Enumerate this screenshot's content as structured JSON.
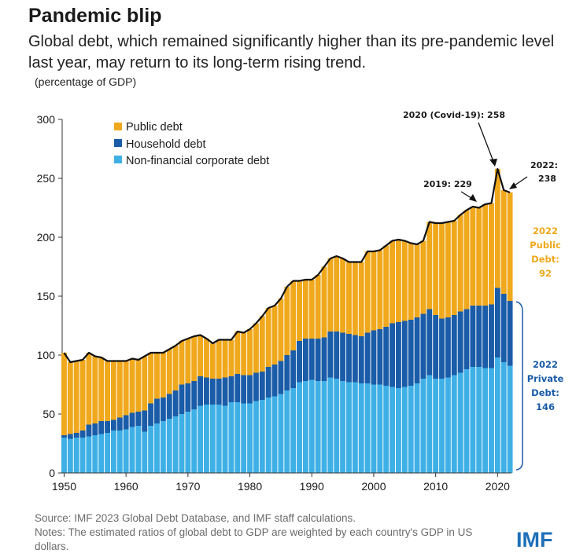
{
  "header": {
    "title": "Pandemic blip",
    "subtitle": "Global debt, which remained significantly higher than its pre-pandemic level last year, may return to its long-term rising trend.",
    "unit": "(percentage of GDP)"
  },
  "footer": {
    "source": "Source: IMF 2023 Global Debt Database, and IMF staff calculations.",
    "notes": "Notes: The estimated ratios of global debt to GDP are weighted by each country's GDP in US dollars.",
    "logo": "IMF"
  },
  "colors": {
    "public": "#f0a81c",
    "household": "#1a5ca8",
    "corporate": "#3fb0e6",
    "total_line": "#111111"
  },
  "chart_data": {
    "type": "bar",
    "stacked": true,
    "title": "Pandemic blip",
    "ylabel": "percentage of GDP",
    "xlabel": "",
    "ylim": [
      0,
      300
    ],
    "yticks": [
      0,
      50,
      100,
      150,
      200,
      250,
      300
    ],
    "xticks": [
      1950,
      1960,
      1970,
      1980,
      1990,
      2000,
      2010,
      2020
    ],
    "x": [
      1950,
      1951,
      1952,
      1953,
      1954,
      1955,
      1956,
      1957,
      1958,
      1959,
      1960,
      1961,
      1962,
      1963,
      1964,
      1965,
      1966,
      1967,
      1968,
      1969,
      1970,
      1971,
      1972,
      1973,
      1974,
      1975,
      1976,
      1977,
      1978,
      1979,
      1980,
      1981,
      1982,
      1983,
      1984,
      1985,
      1986,
      1987,
      1988,
      1989,
      1990,
      1991,
      1992,
      1993,
      1994,
      1995,
      1996,
      1997,
      1998,
      1999,
      2000,
      2001,
      2002,
      2003,
      2004,
      2005,
      2006,
      2007,
      2008,
      2009,
      2010,
      2011,
      2012,
      2013,
      2014,
      2015,
      2016,
      2017,
      2018,
      2019,
      2020,
      2021,
      2022
    ],
    "series": [
      {
        "name": "Non-financial corporate debt",
        "values": [
          30,
          29,
          30,
          30,
          31,
          32,
          33,
          34,
          36,
          36,
          37,
          39,
          40,
          35,
          40,
          42,
          44,
          46,
          48,
          50,
          52,
          54,
          57,
          58,
          58,
          58,
          57,
          60,
          60,
          59,
          59,
          61,
          62,
          64,
          65,
          67,
          70,
          72,
          77,
          78,
          79,
          78,
          78,
          81,
          80,
          78,
          77,
          77,
          76,
          76,
          75,
          75,
          74,
          73,
          72,
          73,
          74,
          76,
          80,
          83,
          80,
          80,
          81,
          83,
          85,
          88,
          90,
          90,
          89,
          89,
          98,
          94,
          91
        ]
      },
      {
        "name": "Household debt",
        "values": [
          2,
          4,
          4,
          6,
          10,
          10,
          11,
          10,
          9,
          11,
          12,
          12,
          12,
          18,
          19,
          21,
          20,
          21,
          22,
          25,
          24,
          24,
          25,
          23,
          22,
          22,
          24,
          22,
          24,
          24,
          24,
          24,
          24,
          26,
          27,
          28,
          30,
          32,
          35,
          36,
          35,
          36,
          37,
          39,
          40,
          41,
          41,
          40,
          40,
          43,
          46,
          47,
          50,
          54,
          56,
          56,
          56,
          56,
          55,
          56,
          54,
          51,
          51,
          51,
          52,
          51,
          52,
          52,
          53,
          54,
          59,
          58,
          55
        ]
      },
      {
        "name": "Public debt",
        "values": [
          70,
          61,
          61,
          60,
          61,
          57,
          54,
          51,
          50,
          48,
          46,
          46,
          44,
          46,
          43,
          39,
          38,
          38,
          38,
          37,
          38,
          38,
          35,
          33,
          30,
          33,
          32,
          31,
          36,
          36,
          39,
          42,
          47,
          50,
          50,
          53,
          58,
          59,
          51,
          50,
          50,
          54,
          60,
          62,
          64,
          63,
          61,
          62,
          63,
          69,
          67,
          67,
          69,
          70,
          70,
          68,
          65,
          62,
          62,
          74,
          78,
          81,
          81,
          80,
          82,
          84,
          84,
          83,
          86,
          86,
          101,
          88,
          92
        ]
      }
    ],
    "totals": [
      102,
      94,
      95,
      96,
      102,
      99,
      98,
      95,
      95,
      95,
      95,
      97,
      96,
      99,
      102,
      102,
      102,
      105,
      108,
      112,
      114,
      116,
      117,
      114,
      110,
      113,
      113,
      113,
      120,
      119,
      122,
      127,
      133,
      140,
      142,
      148,
      158,
      163,
      163,
      164,
      164,
      168,
      175,
      182,
      184,
      182,
      179,
      179,
      179,
      188,
      188,
      189,
      193,
      197,
      198,
      197,
      195,
      194,
      197,
      213,
      212,
      212,
      213,
      214,
      219,
      223,
      226,
      225,
      228,
      229,
      258,
      240,
      238
    ],
    "legend": [
      "Public debt",
      "Household debt",
      "Non-financial corporate debt"
    ],
    "annotations": {
      "covid": "2020 (Covid-19): 258",
      "y2019": "2019: 229",
      "y2022_line1": "2022:",
      "y2022_line2": "238",
      "public_block": [
        "2022",
        "Public",
        "Debt:",
        "92"
      ],
      "private_block": [
        "2022",
        "Private",
        "Debt:",
        "146"
      ]
    }
  }
}
